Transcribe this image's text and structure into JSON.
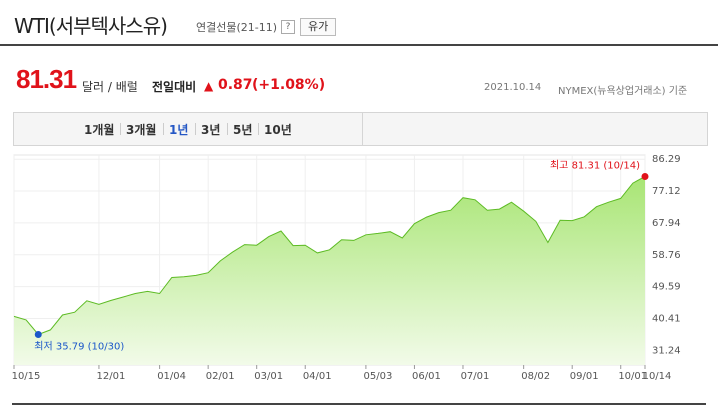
{
  "header": {
    "title": "WTI(서부텍사스유)",
    "subtitle": "연결선물(21-11)",
    "help": "?",
    "button": "유가"
  },
  "quote": {
    "price": "81.31",
    "unit": "달러 / 배럴",
    "change_label": "전일대비",
    "change": "0.87",
    "change_pct": "(+1.08%)",
    "date": "2021.10.14",
    "basis": "NYMEX(뉴욕상업거래소) 기준"
  },
  "tabs": [
    "1개월",
    "3개월",
    "1년",
    "3년",
    "5년",
    "10년"
  ],
  "active_tab": "1년",
  "chart_data": {
    "type": "area",
    "color": "#5dbb24",
    "categories": [
      "10/15",
      null,
      null,
      null,
      null,
      null,
      null,
      "12/01",
      null,
      null,
      null,
      null,
      "01/04",
      null,
      null,
      null,
      "02/01",
      null,
      null,
      null,
      "03/01",
      null,
      null,
      null,
      "04/01",
      null,
      null,
      null,
      null,
      "05/03",
      null,
      null,
      null,
      "06/01",
      null,
      null,
      null,
      "07/01",
      null,
      null,
      null,
      null,
      "08/02",
      null,
      null,
      null,
      "09/01",
      null,
      null,
      null,
      "10/01",
      null,
      "10/14"
    ],
    "values": [
      41.0,
      40.0,
      35.79,
      37.1,
      41.4,
      42.2,
      45.5,
      44.5,
      45.6,
      46.6,
      47.6,
      48.2,
      47.6,
      52.2,
      52.4,
      52.8,
      53.6,
      57.0,
      59.5,
      61.7,
      61.5,
      64.0,
      65.6,
      61.4,
      61.5,
      59.3,
      60.2,
      63.1,
      62.9,
      64.5,
      64.9,
      65.4,
      63.6,
      67.7,
      69.6,
      70.9,
      71.6,
      75.2,
      74.6,
      71.6,
      71.9,
      73.9,
      71.3,
      68.4,
      62.3,
      68.7,
      68.6,
      69.7,
      72.6,
      73.9,
      75.0,
      79.4,
      81.31
    ],
    "ylim": [
      27,
      87.5
    ],
    "yticks": [
      31.24,
      40.41,
      49.59,
      58.76,
      67.94,
      77.12,
      86.29
    ],
    "annotations": {
      "max": "최고 81.31 (10/14)",
      "min": "최저 35.79 (10/30)"
    }
  }
}
